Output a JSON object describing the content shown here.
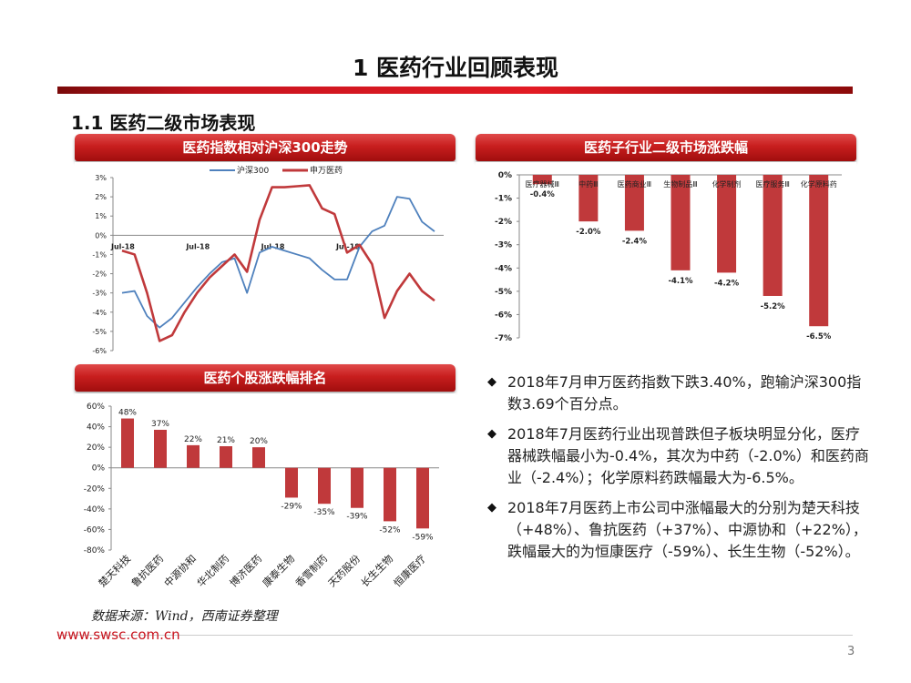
{
  "page_title": "1 医药行业回顾表现",
  "section_title": "1.1 医药二级市场表现",
  "colors": {
    "red": "#c0393b",
    "blue": "#4f81bd",
    "banner": "#c81e1e",
    "accent": "#e21b24"
  },
  "banners": {
    "line_chart": "医药指数相对沪深300走势",
    "sub_industry": "医药子行业二级市场涨跌幅",
    "stock_rank": "医药个股涨跌幅排名"
  },
  "chart_data": [
    {
      "id": "index-trend",
      "type": "line",
      "title": "医药指数相对沪深300走势",
      "series": [
        {
          "name": "沪深300",
          "color": "#4f81bd",
          "values": [
            -3.0,
            -2.9,
            -4.2,
            -4.8,
            -4.3,
            -3.5,
            -2.7,
            -2.0,
            -1.4,
            -1.2,
            -3.0,
            -0.9,
            -0.6,
            -0.8,
            -1.0,
            -1.2,
            -1.8,
            -2.3,
            -2.3,
            -0.6,
            0.2,
            0.5,
            2.0,
            1.9,
            0.7,
            0.2
          ]
        },
        {
          "name": "申万医药",
          "color": "#c0393b",
          "values": [
            -0.8,
            -1.0,
            -3.0,
            -5.5,
            -5.2,
            -4.0,
            -3.0,
            -2.2,
            -1.6,
            -1.0,
            -1.9,
            0.8,
            2.5,
            2.5,
            2.55,
            2.6,
            1.4,
            1.1,
            -0.9,
            -0.5,
            -1.5,
            -4.3,
            -2.9,
            -2.0,
            -2.9,
            -3.4
          ]
        }
      ],
      "x_tick_labels": [
        "Jul-18",
        "Jul-18",
        "Jul-18",
        "Jul-18"
      ],
      "y_tick_labels": [
        "3%",
        "2%",
        "1%",
        "0%",
        "-1%",
        "-2%",
        "-3%",
        "-4%",
        "-5%",
        "-6%"
      ],
      "ylim": [
        -6,
        3
      ]
    },
    {
      "id": "sub-industry",
      "type": "bar",
      "title": "医药子行业二级市场涨跌幅",
      "categories": [
        "医疗器械Ⅲ",
        "中药Ⅲ",
        "医药商业Ⅲ",
        "生物制品Ⅲ",
        "化学制剂",
        "医疗服务Ⅲ",
        "化学原料药"
      ],
      "values": [
        -0.4,
        -2.0,
        -2.4,
        -4.1,
        -4.2,
        -5.2,
        -6.5
      ],
      "value_labels": [
        "-0.4%",
        "-2.0%",
        "-2.4%",
        "-4.1%",
        "-4.2%",
        "-5.2%",
        "-6.5%"
      ],
      "y_tick_labels": [
        "0%",
        "-1%",
        "-2%",
        "-3%",
        "-4%",
        "-5%",
        "-6%",
        "-7%"
      ],
      "ylim": [
        -7,
        0
      ]
    },
    {
      "id": "stock-rank",
      "type": "bar",
      "title": "医药个股涨跌幅排名",
      "categories": [
        "楚天科技",
        "鲁抗医药",
        "中源协和",
        "华北制药",
        "博济医药",
        "康泰生物",
        "香雪制药",
        "天药股份",
        "长生生物",
        "恒康医疗"
      ],
      "values": [
        48,
        37,
        22,
        21,
        20,
        -29,
        -35,
        -39,
        -52,
        -59
      ],
      "value_labels": [
        "48%",
        "37%",
        "22%",
        "21%",
        "20%",
        "-29%",
        "-35%",
        "-39%",
        "-52%",
        "-59%"
      ],
      "y_tick_labels": [
        "60%",
        "40%",
        "20%",
        "0%",
        "-20%",
        "-40%",
        "-60%",
        "-80%"
      ],
      "ylim": [
        -80,
        60
      ]
    }
  ],
  "bullets": [
    "2018年7月申万医药指数下跌3.40%，跑输沪深300指数3.69个百分点。",
    "2018年7月医药行业出现普跌但子板块明显分化，医疗器械跌幅最小为-0.4%，其次为中药（-2.0%）和医药商业（-2.4%）；化学原料药跌幅最大为-6.5%。",
    "2018年7月医药上市公司中涨幅最大的分别为楚天科技（+48%）、鲁抗医药（+37%）、中源协和（+22%），跌幅最大的为恒康医疗（-59%）、长生生物（-52%）。"
  ],
  "bullet_icon": "diamond-icon",
  "source": "数据来源：Wind，西南证券整理",
  "website": "www.swsc.com.cn",
  "page_number": "3"
}
